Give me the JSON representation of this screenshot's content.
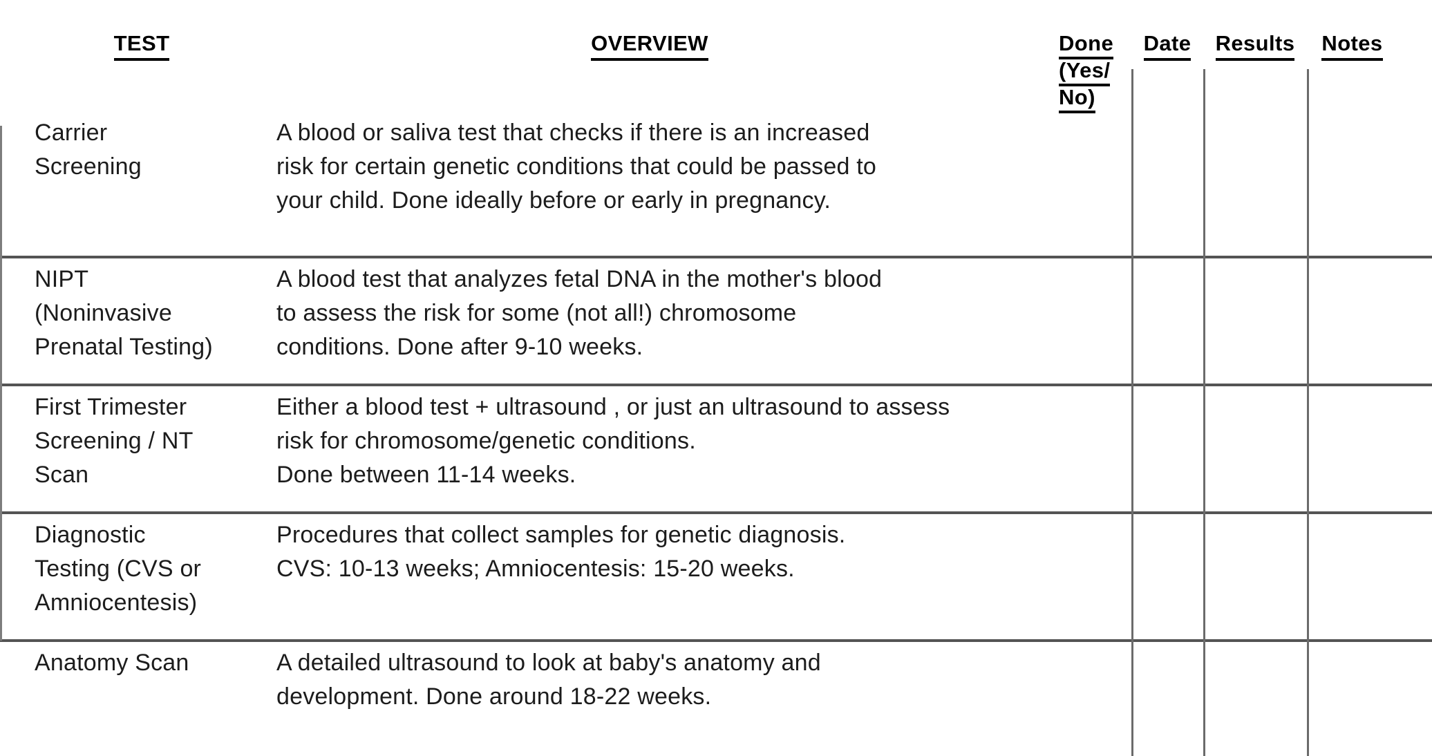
{
  "document": {
    "title": "Prenatal testing checklist table",
    "headers": {
      "test": "TEST",
      "overview": "OVERVIEW",
      "done_line1": "Done",
      "done_line2": "(Yes/",
      "done_line3": "No)",
      "date": "Date",
      "results": "Results",
      "notes": "Notes"
    },
    "rows": [
      {
        "test": "Carrier\nScreening",
        "overview": "A blood or saliva test that checks if there is an increased\nrisk for certain genetic conditions that could be passed to\nyour child. Done ideally before or early in pregnancy.",
        "done": "",
        "date": "",
        "results": "",
        "notes": ""
      },
      {
        "test": "NIPT\n(Noninvasive\nPrenatal Testing)",
        "overview": "A blood test that analyzes fetal DNA in the mother's blood\nto assess the risk for some (not all!) chromosome\nconditions. Done after 9-10 weeks.",
        "done": "",
        "date": "",
        "results": "",
        "notes": ""
      },
      {
        "test": "First Trimester\nScreening / NT\nScan",
        "overview": "Either a blood test + ultrasound , or just an ultrasound to assess\nrisk for chromosome/genetic conditions.\nDone between 11-14 weeks.",
        "done": "",
        "date": "",
        "results": "",
        "notes": ""
      },
      {
        "test": "Diagnostic\nTesting (CVS or\nAmniocentesis)",
        "overview": "Procedures that collect samples for genetic diagnosis.\nCVS: 10-13 weeks; Amniocentesis: 15-20 weeks.",
        "done": "",
        "date": "",
        "results": "",
        "notes": ""
      },
      {
        "test": "Anatomy Scan",
        "overview": "A detailed ultrasound to look at baby's anatomy and\ndevelopment. Done around 18-22 weeks.",
        "done": "",
        "date": "",
        "results": "",
        "notes": ""
      }
    ],
    "colors": {
      "header_text": "#000000",
      "body_text": "#1c1c1c",
      "horizontal_line": "#545454",
      "vertical_line": "#6b6b6b"
    }
  }
}
